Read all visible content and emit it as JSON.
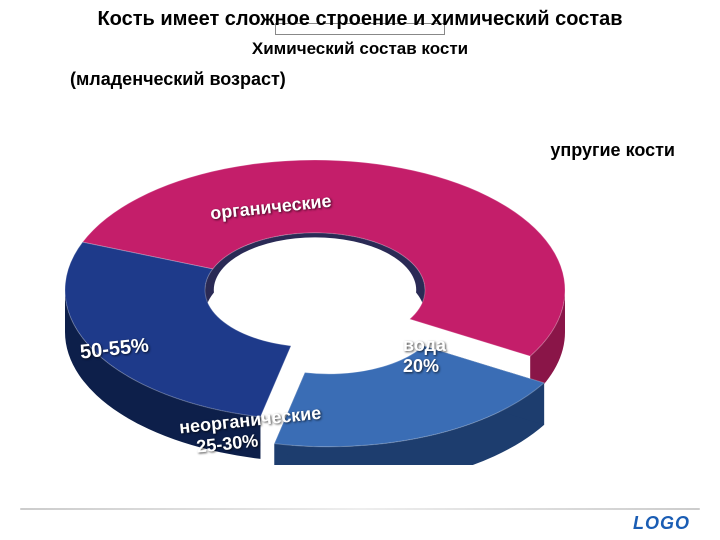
{
  "title": "Кость имеет сложное строение и химический состав",
  "subtitle": "Химический состав кости",
  "subtitle2": "(младенческий возраст)",
  "annotation_right": "упругие кости",
  "logo_text": "LOGO",
  "chart": {
    "type": "donut-3d",
    "slices": [
      {
        "key": "organic",
        "label": "органические",
        "pct_label": "50-55%",
        "value": 52.5,
        "color_top": "#c41e6a",
        "color_side": "#8a1548"
      },
      {
        "key": "water",
        "label": "вода",
        "pct_label": "20%",
        "value": 20,
        "color_top": "#3a6db5",
        "color_side": "#1d3d6e"
      },
      {
        "key": "inorganic",
        "label": "неорганические",
        "pct_label": "25-30%",
        "value": 27.5,
        "color_top": "#1e3a8a",
        "color_side": "#0d1f4a"
      }
    ],
    "inner_hole_color": "#ffffff",
    "background": "#ffffff",
    "label_color": "#ffffff",
    "label_fontsize": 18,
    "pct_fontsize": 20,
    "annotation_fontsize": 18,
    "annotation_color": "#000000",
    "tilt_ratio": 0.52,
    "depth": 42,
    "outer_rx": 250,
    "inner_rx": 110,
    "water_explode": 35
  }
}
